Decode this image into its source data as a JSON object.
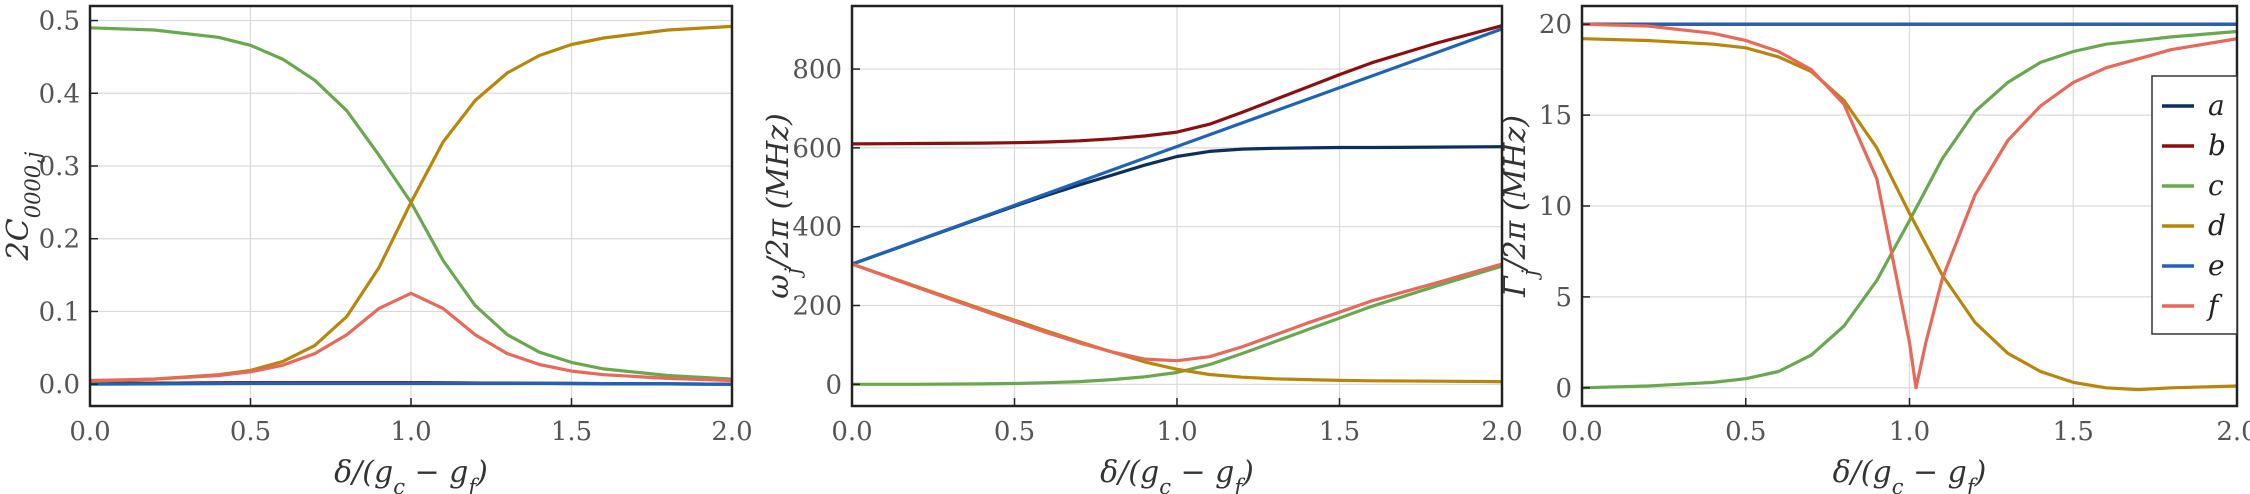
{
  "colors": {
    "a": "#0d2f5c",
    "b": "#8a1010",
    "c": "#6aa84f",
    "d": "#b8860b",
    "e": "#1f63b8",
    "f": "#e8685a",
    "grid": "#d9d9d9",
    "frame": "#222222"
  },
  "chart_data": [
    {
      "type": "line",
      "xlabel": "δ/(g_c − g_f)",
      "ylabel": "2C_{0000,j}",
      "xlim": [
        0,
        2
      ],
      "ylim": [
        -0.03,
        0.52
      ],
      "xticks": [
        0,
        0.5,
        1,
        1.5,
        2
      ],
      "xtick_labels": [
        "0.0",
        "0.5",
        "1.0",
        "1.5",
        "2.0"
      ],
      "yticks": [
        0,
        0.1,
        0.2,
        0.3,
        0.4,
        0.5
      ],
      "ytick_labels": [
        "0.0",
        "0.1",
        "0.2",
        "0.3",
        "0.4",
        "0.5"
      ],
      "grid": true,
      "series": [
        {
          "name": "a",
          "x": [
            0,
            0.5,
            1,
            1.5,
            2
          ],
          "y": [
            0.001,
            0.002,
            0.002,
            0.001,
            0.0
          ]
        },
        {
          "name": "b",
          "x": [
            0,
            0.5,
            1,
            1.5,
            2
          ],
          "y": [
            0.001,
            0.002,
            0.002,
            0.001,
            0.0
          ]
        },
        {
          "name": "e",
          "x": [
            0,
            0.5,
            1,
            1.5,
            2
          ],
          "y": [
            0.0,
            0.001,
            0.001,
            0.001,
            0.0
          ]
        },
        {
          "name": "c",
          "x": [
            0,
            0.2,
            0.4,
            0.5,
            0.6,
            0.7,
            0.8,
            0.9,
            1.0,
            1.1,
            1.2,
            1.3,
            1.4,
            1.5,
            1.6,
            1.8,
            2.0
          ],
          "y": [
            0.49,
            0.487,
            0.477,
            0.466,
            0.447,
            0.418,
            0.376,
            0.315,
            0.25,
            0.17,
            0.108,
            0.068,
            0.044,
            0.03,
            0.021,
            0.012,
            0.007
          ]
        },
        {
          "name": "d",
          "x": [
            0,
            0.2,
            0.4,
            0.5,
            0.6,
            0.7,
            0.8,
            0.9,
            1.0,
            1.1,
            1.2,
            1.3,
            1.4,
            1.5,
            1.6,
            1.8,
            2.0
          ],
          "y": [
            0.004,
            0.007,
            0.013,
            0.019,
            0.031,
            0.053,
            0.093,
            0.16,
            0.25,
            0.333,
            0.39,
            0.428,
            0.452,
            0.467,
            0.476,
            0.487,
            0.492
          ]
        },
        {
          "name": "f",
          "x": [
            0,
            0.2,
            0.4,
            0.5,
            0.6,
            0.7,
            0.8,
            0.9,
            1.0,
            1.1,
            1.2,
            1.3,
            1.4,
            1.5,
            1.6,
            1.8,
            2.0
          ],
          "y": [
            0.005,
            0.007,
            0.012,
            0.017,
            0.026,
            0.042,
            0.068,
            0.104,
            0.125,
            0.104,
            0.068,
            0.042,
            0.027,
            0.018,
            0.013,
            0.008,
            0.005
          ]
        }
      ]
    },
    {
      "type": "line",
      "xlabel": "δ/(g_c − g_f)",
      "ylabel": "ω_j/2π (MHz)",
      "xlim": [
        0,
        2
      ],
      "ylim": [
        -55,
        960
      ],
      "xticks": [
        0,
        0.5,
        1,
        1.5,
        2
      ],
      "xtick_labels": [
        "0.0",
        "0.5",
        "1.0",
        "1.5",
        "2.0"
      ],
      "yticks": [
        0,
        200,
        400,
        600,
        800
      ],
      "ytick_labels": [
        "0",
        "200",
        "400",
        "600",
        "800"
      ],
      "grid": true,
      "series": [
        {
          "name": "a",
          "x": [
            0,
            0.2,
            0.4,
            0.5,
            0.6,
            0.7,
            0.8,
            0.9,
            1.0,
            1.1,
            1.2,
            1.3,
            1.4,
            1.5,
            1.6,
            1.8,
            2.0
          ],
          "y": [
            305,
            364,
            423,
            452,
            480,
            506,
            531,
            556,
            578,
            591,
            597,
            599,
            600,
            601,
            601,
            602,
            603
          ]
        },
        {
          "name": "b",
          "x": [
            0,
            0.2,
            0.4,
            0.5,
            0.6,
            0.7,
            0.8,
            0.9,
            1.0,
            1.1,
            1.2,
            1.3,
            1.4,
            1.5,
            1.6,
            1.8,
            2.0
          ],
          "y": [
            610,
            611,
            612,
            613,
            615,
            618,
            623,
            630,
            640,
            660,
            690,
            722,
            754,
            786,
            816,
            866,
            910
          ]
        },
        {
          "name": "e",
          "x": [
            0,
            2.0
          ],
          "y": [
            305,
            902
          ]
        },
        {
          "name": "c",
          "x": [
            0,
            0.2,
            0.4,
            0.5,
            0.6,
            0.7,
            0.8,
            0.9,
            1.0,
            1.1,
            1.2,
            1.3,
            1.4,
            1.5,
            1.6,
            1.8,
            2.0
          ],
          "y": [
            0,
            0,
            1,
            2,
            4,
            7,
            12,
            19,
            30,
            50,
            78,
            108,
            138,
            168,
            198,
            250,
            300
          ]
        },
        {
          "name": "d",
          "x": [
            0,
            0.2,
            0.4,
            0.5,
            0.6,
            0.7,
            0.8,
            0.9,
            1.0,
            1.1,
            1.2,
            1.3,
            1.4,
            1.5,
            1.6,
            1.8,
            2.0
          ],
          "y": [
            305,
            248,
            191,
            163,
            135,
            108,
            82,
            57,
            38,
            25,
            18,
            14,
            12,
            10,
            9,
            8,
            7
          ]
        },
        {
          "name": "f",
          "x": [
            0,
            0.2,
            0.4,
            0.5,
            0.6,
            0.7,
            0.8,
            0.9,
            1.0,
            1.1,
            1.2,
            1.3,
            1.4,
            1.5,
            1.6,
            1.8,
            2.0
          ],
          "y": [
            305,
            246,
            188,
            159,
            131,
            105,
            82,
            64,
            60,
            70,
            95,
            125,
            155,
            183,
            212,
            258,
            305
          ]
        }
      ]
    },
    {
      "type": "line",
      "xlabel": "δ/(g_c − g_f)",
      "ylabel": "Γ_j/2π (MHz)",
      "xlim": [
        0,
        2
      ],
      "ylim": [
        -1,
        21
      ],
      "xticks": [
        0,
        0.5,
        1,
        1.5,
        2
      ],
      "xtick_labels": [
        "0.0",
        "0.5",
        "1.0",
        "1.5",
        "2.0"
      ],
      "yticks": [
        0,
        5,
        10,
        15,
        20
      ],
      "ytick_labels": [
        "0",
        "5",
        "10",
        "15",
        "20"
      ],
      "grid": true,
      "legend_position": "right",
      "legend": [
        "a",
        "b",
        "c",
        "d",
        "e",
        "f"
      ],
      "series": [
        {
          "name": "a",
          "x": [
            0,
            2.0
          ],
          "y": [
            20,
            20
          ]
        },
        {
          "name": "b",
          "x": [
            0,
            2.0
          ],
          "y": [
            20,
            20
          ]
        },
        {
          "name": "e",
          "x": [
            0,
            2.0
          ],
          "y": [
            20,
            20
          ]
        },
        {
          "name": "c",
          "x": [
            0,
            0.2,
            0.4,
            0.5,
            0.6,
            0.7,
            0.8,
            0.9,
            1.0,
            1.1,
            1.2,
            1.3,
            1.4,
            1.5,
            1.6,
            1.8,
            2.0
          ],
          "y": [
            0,
            0.1,
            0.3,
            0.5,
            0.9,
            1.8,
            3.4,
            5.9,
            9.2,
            12.6,
            15.2,
            16.8,
            17.9,
            18.5,
            18.9,
            19.3,
            19.6
          ]
        },
        {
          "name": "d",
          "x": [
            0,
            0.2,
            0.4,
            0.5,
            0.6,
            0.7,
            0.8,
            0.9,
            1.0,
            1.1,
            1.2,
            1.3,
            1.4,
            1.5,
            1.6,
            1.7,
            1.8,
            2.0
          ],
          "y": [
            19.2,
            19.1,
            18.9,
            18.7,
            18.2,
            17.4,
            15.8,
            13.2,
            9.6,
            6.2,
            3.6,
            1.9,
            0.9,
            0.3,
            0.0,
            -0.1,
            0.0,
            0.1
          ]
        },
        {
          "name": "f",
          "x": [
            0,
            0.2,
            0.4,
            0.5,
            0.6,
            0.7,
            0.8,
            0.9,
            0.95,
            1.0,
            1.02,
            1.05,
            1.1,
            1.2,
            1.3,
            1.4,
            1.5,
            1.6,
            1.8,
            2.0
          ],
          "y": [
            20,
            19.9,
            19.5,
            19.1,
            18.5,
            17.5,
            15.6,
            11.5,
            7.0,
            2.5,
            0,
            2.5,
            6.0,
            10.6,
            13.6,
            15.5,
            16.8,
            17.6,
            18.6,
            19.2
          ]
        }
      ]
    }
  ]
}
